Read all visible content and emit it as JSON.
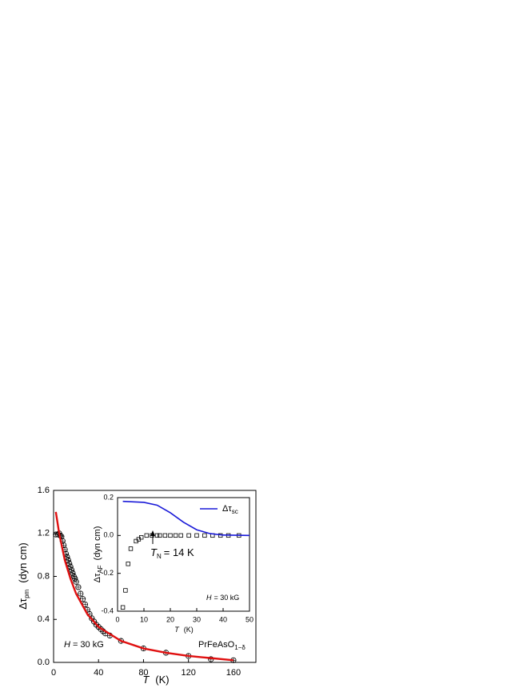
{
  "chart_data": [
    {
      "type": "scatter-line",
      "x_label": {
        "symbol": "T",
        "unit": "(K)"
      },
      "y_label": {
        "symbol": "Δτ",
        "sub": "pm",
        "unit": "(dyn cm)"
      },
      "annotations": {
        "field": {
          "symbol": "H",
          "text": "= 30 kG"
        },
        "sample": {
          "text": "PrFeAsO",
          "sub": "1−δ"
        }
      },
      "xlim": [
        0,
        180
      ],
      "xticks": [
        0,
        40,
        80,
        120,
        160
      ],
      "ylim": [
        0,
        1.6
      ],
      "yticks": [
        {
          "value": 0,
          "label": "0.0"
        },
        0.4,
        0.8,
        1.2,
        1.6
      ],
      "series": [
        {
          "kind": "scatter",
          "marker": "circle-cross",
          "color": "#000000",
          "x": [
            2,
            4,
            5,
            6,
            7,
            8,
            9,
            10,
            11,
            12,
            13,
            14,
            15,
            16,
            17,
            18,
            19,
            20,
            22,
            24,
            26,
            28,
            30,
            32,
            34,
            36,
            38,
            40,
            42,
            44,
            46,
            50,
            60,
            80,
            100,
            120,
            140,
            160
          ],
          "values": [
            1.19,
            1.19,
            1.2,
            1.18,
            1.17,
            1.13,
            1.09,
            1.05,
            1.01,
            0.98,
            0.95,
            0.92,
            0.89,
            0.86,
            0.83,
            0.8,
            0.78,
            0.75,
            0.7,
            0.64,
            0.59,
            0.54,
            0.49,
            0.45,
            0.41,
            0.38,
            0.35,
            0.33,
            0.31,
            0.29,
            0.27,
            0.25,
            0.2,
            0.13,
            0.09,
            0.06,
            0.03,
            0.02
          ]
        },
        {
          "kind": "line",
          "color": "#e01010",
          "x": [
            2,
            5,
            10,
            15,
            20,
            30,
            40,
            60,
            80,
            100,
            120,
            140,
            160
          ],
          "values": [
            1.4,
            1.2,
            0.95,
            0.78,
            0.64,
            0.45,
            0.33,
            0.2,
            0.13,
            0.09,
            0.06,
            0.04,
            0.02
          ]
        }
      ]
    },
    {
      "type": "scatter-line",
      "x_label": {
        "symbol": "T",
        "unit": "(K)"
      },
      "y_label": {
        "symbol": "Δτ",
        "sub": "AF",
        "unit": "(dyn cm)"
      },
      "annotations": {
        "transition": {
          "symbol": "T",
          "sub": "N",
          "text": "= 14 K"
        },
        "field": {
          "symbol": "H",
          "text": "= 30 kG"
        }
      },
      "xlim": [
        0,
        50
      ],
      "xticks": [
        0,
        10,
        20,
        30,
        40,
        50
      ],
      "ylim": [
        -0.4,
        0.2
      ],
      "yticks": [
        -0.4,
        -0.2,
        {
          "value": 0,
          "label": "0.0"
        },
        0.2
      ],
      "series": [
        {
          "kind": "scatter",
          "marker": "square",
          "color": "#000000",
          "x": [
            2,
            3,
            4,
            5,
            7,
            8,
            9,
            11,
            13,
            15,
            16,
            18,
            20,
            22,
            24,
            27,
            30,
            33,
            36,
            39,
            42,
            46
          ],
          "values": [
            -0.38,
            -0.29,
            -0.15,
            -0.07,
            -0.03,
            -0.02,
            -0.01,
            0,
            0,
            0,
            0,
            0,
            0,
            0,
            0,
            0,
            0,
            0,
            0,
            0,
            0,
            0
          ]
        },
        {
          "kind": "line",
          "color": "#1a1ad8",
          "name": "Δτ",
          "name_sub": "sc",
          "x": [
            2,
            10,
            15,
            20,
            25,
            30,
            35,
            40,
            50
          ],
          "values": [
            0.18,
            0.175,
            0.16,
            0.12,
            0.07,
            0.03,
            0.01,
            0.002,
            0
          ]
        }
      ]
    }
  ]
}
